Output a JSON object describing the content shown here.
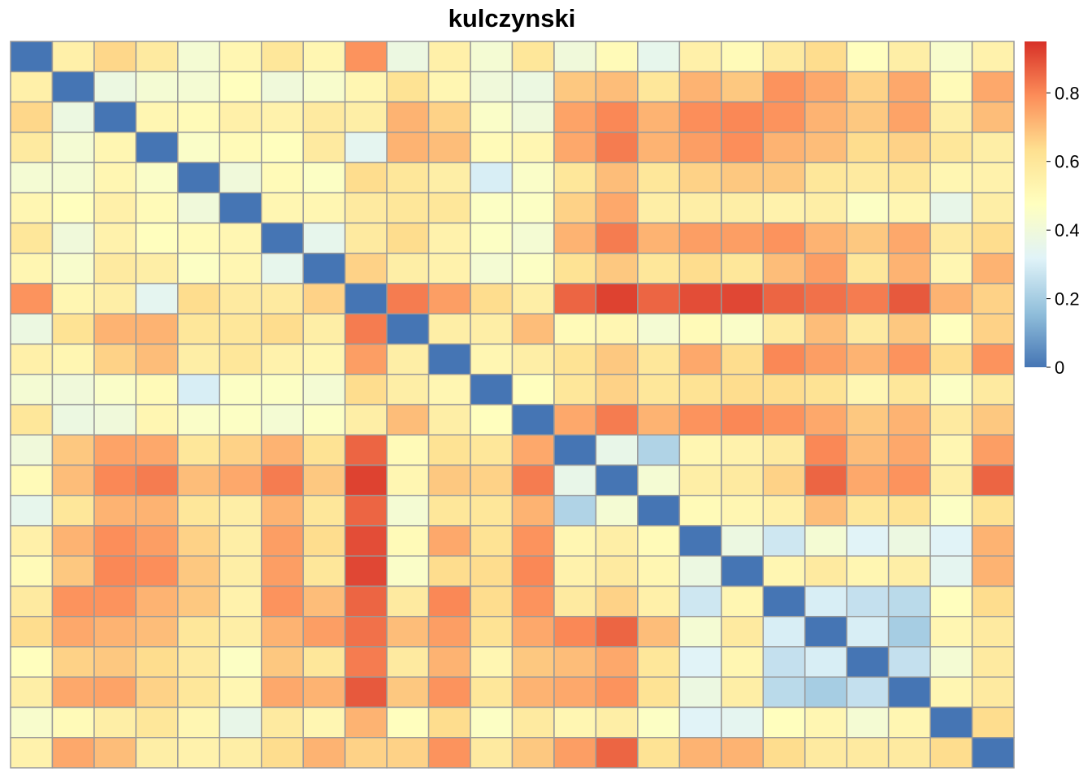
{
  "chart_data": {
    "type": "heatmap",
    "title": "kulczynski",
    "n": 24,
    "color_scale": {
      "range": [
        0,
        0.95
      ],
      "colors": [
        "#4575b4",
        "#91bfdb",
        "#e0f3f8",
        "#ffffbf",
        "#fee090",
        "#fc8d59",
        "#d73027"
      ],
      "cell_border": "#999999"
    },
    "colorbar": {
      "ticks": [
        0,
        0.2,
        0.4,
        0.6,
        0.8
      ],
      "tick_labels": [
        "0",
        "0.2",
        "0.4",
        "0.6",
        "0.8"
      ]
    },
    "matrix": [
      [
        0,
        0.55,
        0.65,
        0.58,
        0.42,
        0.52,
        0.6,
        0.52,
        0.78,
        0.38,
        0.55,
        0.42,
        0.6,
        0.4,
        0.5,
        0.35,
        0.55,
        0.5,
        0.58,
        0.64,
        0.48,
        0.56,
        0.44,
        0.54
      ],
      [
        0.55,
        0,
        0.38,
        0.42,
        0.42,
        0.48,
        0.4,
        0.44,
        0.52,
        0.62,
        0.52,
        0.4,
        0.38,
        0.68,
        0.7,
        0.6,
        0.72,
        0.68,
        0.78,
        0.74,
        0.66,
        0.74,
        0.5,
        0.74
      ],
      [
        0.65,
        0.38,
        0,
        0.52,
        0.5,
        0.55,
        0.54,
        0.58,
        0.56,
        0.72,
        0.66,
        0.45,
        0.4,
        0.75,
        0.8,
        0.72,
        0.79,
        0.8,
        0.78,
        0.72,
        0.68,
        0.75,
        0.56,
        0.7
      ],
      [
        0.58,
        0.42,
        0.52,
        0,
        0.45,
        0.5,
        0.48,
        0.58,
        0.34,
        0.72,
        0.7,
        0.5,
        0.52,
        0.74,
        0.82,
        0.72,
        0.76,
        0.79,
        0.72,
        0.7,
        0.64,
        0.66,
        0.6,
        0.56
      ],
      [
        0.42,
        0.42,
        0.52,
        0.45,
        0,
        0.4,
        0.5,
        0.46,
        0.64,
        0.6,
        0.56,
        0.3,
        0.45,
        0.6,
        0.7,
        0.6,
        0.66,
        0.68,
        0.68,
        0.6,
        0.58,
        0.6,
        0.52,
        0.54
      ],
      [
        0.52,
        0.48,
        0.55,
        0.5,
        0.4,
        0,
        0.52,
        0.52,
        0.58,
        0.6,
        0.6,
        0.46,
        0.46,
        0.66,
        0.74,
        0.56,
        0.56,
        0.56,
        0.54,
        0.56,
        0.46,
        0.52,
        0.36,
        0.56
      ],
      [
        0.6,
        0.4,
        0.54,
        0.48,
        0.5,
        0.52,
        0,
        0.35,
        0.58,
        0.64,
        0.54,
        0.46,
        0.42,
        0.72,
        0.82,
        0.72,
        0.76,
        0.76,
        0.78,
        0.72,
        0.68,
        0.74,
        0.58,
        0.64
      ],
      [
        0.52,
        0.44,
        0.58,
        0.56,
        0.46,
        0.52,
        0.35,
        0,
        0.66,
        0.56,
        0.54,
        0.42,
        0.46,
        0.62,
        0.68,
        0.6,
        0.64,
        0.6,
        0.7,
        0.76,
        0.6,
        0.72,
        0.52,
        0.72
      ],
      [
        0.78,
        0.52,
        0.56,
        0.34,
        0.64,
        0.58,
        0.58,
        0.66,
        0,
        0.82,
        0.76,
        0.64,
        0.56,
        0.86,
        0.92,
        0.86,
        0.9,
        0.91,
        0.86,
        0.84,
        0.82,
        0.88,
        0.72,
        0.66
      ],
      [
        0.38,
        0.62,
        0.72,
        0.72,
        0.6,
        0.6,
        0.64,
        0.56,
        0.82,
        0,
        0.56,
        0.56,
        0.7,
        0.5,
        0.52,
        0.42,
        0.5,
        0.45,
        0.58,
        0.7,
        0.58,
        0.68,
        0.48,
        0.66
      ],
      [
        0.55,
        0.52,
        0.66,
        0.7,
        0.56,
        0.6,
        0.54,
        0.52,
        0.76,
        0.56,
        0,
        0.52,
        0.56,
        0.62,
        0.68,
        0.6,
        0.74,
        0.64,
        0.8,
        0.76,
        0.72,
        0.78,
        0.64,
        0.78
      ],
      [
        0.42,
        0.4,
        0.45,
        0.5,
        0.3,
        0.46,
        0.46,
        0.42,
        0.64,
        0.56,
        0.52,
        0,
        0.48,
        0.6,
        0.66,
        0.6,
        0.62,
        0.64,
        0.64,
        0.62,
        0.52,
        0.6,
        0.46,
        0.58
      ],
      [
        0.6,
        0.38,
        0.4,
        0.52,
        0.45,
        0.46,
        0.42,
        0.46,
        0.56,
        0.7,
        0.56,
        0.48,
        0,
        0.74,
        0.82,
        0.72,
        0.78,
        0.8,
        0.78,
        0.74,
        0.68,
        0.72,
        0.58,
        0.68
      ],
      [
        0.4,
        0.68,
        0.75,
        0.74,
        0.6,
        0.66,
        0.72,
        0.62,
        0.86,
        0.5,
        0.62,
        0.6,
        0.74,
        0,
        0.36,
        0.22,
        0.52,
        0.54,
        0.58,
        0.8,
        0.7,
        0.74,
        0.52,
        0.76
      ],
      [
        0.5,
        0.7,
        0.8,
        0.82,
        0.7,
        0.74,
        0.82,
        0.68,
        0.92,
        0.52,
        0.68,
        0.66,
        0.82,
        0.36,
        0,
        0.42,
        0.56,
        0.58,
        0.66,
        0.86,
        0.74,
        0.78,
        0.56,
        0.86
      ],
      [
        0.35,
        0.6,
        0.72,
        0.72,
        0.6,
        0.56,
        0.72,
        0.6,
        0.86,
        0.42,
        0.6,
        0.6,
        0.72,
        0.22,
        0.42,
        0,
        0.5,
        0.52,
        0.55,
        0.7,
        0.6,
        0.62,
        0.46,
        0.62
      ],
      [
        0.55,
        0.72,
        0.79,
        0.76,
        0.66,
        0.56,
        0.76,
        0.64,
        0.9,
        0.5,
        0.74,
        0.62,
        0.78,
        0.52,
        0.56,
        0.5,
        0,
        0.38,
        0.28,
        0.42,
        0.32,
        0.38,
        0.32,
        0.72
      ],
      [
        0.5,
        0.68,
        0.8,
        0.79,
        0.68,
        0.56,
        0.76,
        0.6,
        0.91,
        0.45,
        0.64,
        0.64,
        0.8,
        0.54,
        0.58,
        0.52,
        0.38,
        0,
        0.52,
        0.58,
        0.52,
        0.56,
        0.34,
        0.72
      ],
      [
        0.58,
        0.78,
        0.78,
        0.72,
        0.68,
        0.54,
        0.78,
        0.7,
        0.86,
        0.58,
        0.8,
        0.64,
        0.78,
        0.58,
        0.66,
        0.55,
        0.28,
        0.52,
        0,
        0.3,
        0.26,
        0.24,
        0.48,
        0.64
      ],
      [
        0.64,
        0.74,
        0.72,
        0.7,
        0.6,
        0.56,
        0.72,
        0.76,
        0.84,
        0.7,
        0.76,
        0.62,
        0.74,
        0.8,
        0.86,
        0.7,
        0.42,
        0.58,
        0.3,
        0,
        0.3,
        0.2,
        0.52,
        0.58
      ],
      [
        0.48,
        0.66,
        0.68,
        0.64,
        0.58,
        0.46,
        0.68,
        0.6,
        0.82,
        0.58,
        0.72,
        0.52,
        0.68,
        0.7,
        0.74,
        0.6,
        0.32,
        0.52,
        0.26,
        0.3,
        0,
        0.26,
        0.42,
        0.58
      ],
      [
        0.56,
        0.74,
        0.75,
        0.66,
        0.6,
        0.52,
        0.74,
        0.72,
        0.88,
        0.68,
        0.78,
        0.6,
        0.72,
        0.74,
        0.78,
        0.62,
        0.38,
        0.56,
        0.24,
        0.2,
        0.26,
        0,
        0.52,
        0.58
      ],
      [
        0.44,
        0.5,
        0.56,
        0.6,
        0.52,
        0.36,
        0.58,
        0.52,
        0.72,
        0.48,
        0.64,
        0.46,
        0.58,
        0.52,
        0.56,
        0.46,
        0.32,
        0.34,
        0.48,
        0.52,
        0.42,
        0.52,
        0,
        0.64
      ],
      [
        0.54,
        0.74,
        0.7,
        0.56,
        0.54,
        0.56,
        0.64,
        0.72,
        0.66,
        0.66,
        0.78,
        0.58,
        0.68,
        0.76,
        0.86,
        0.62,
        0.72,
        0.72,
        0.64,
        0.58,
        0.58,
        0.58,
        0.64,
        0
      ]
    ]
  }
}
